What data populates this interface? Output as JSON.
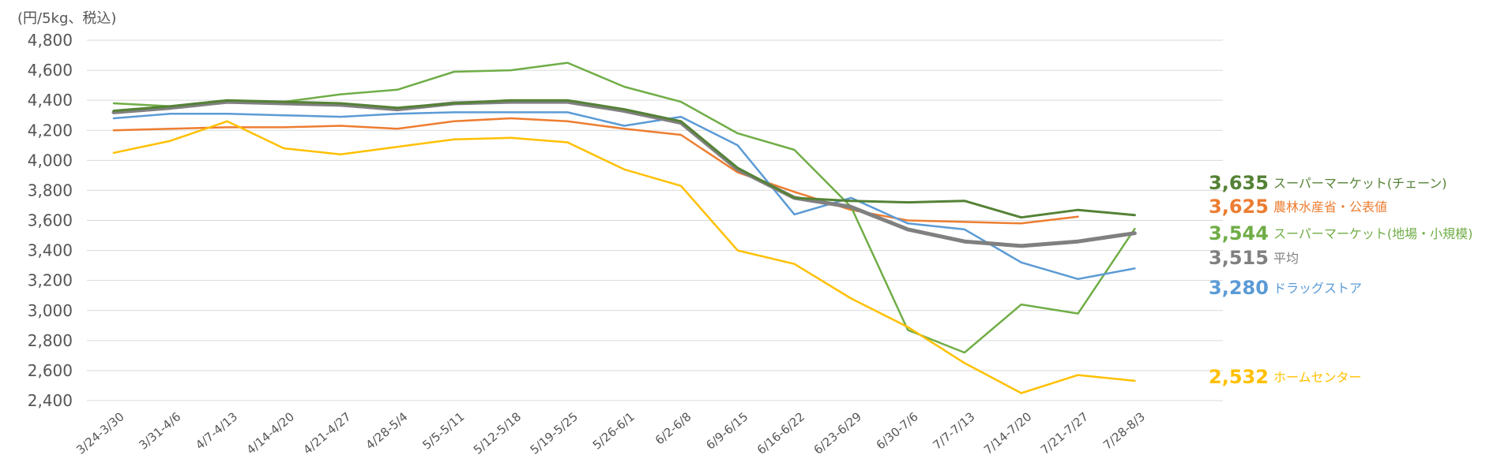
{
  "chart_data": {
    "type": "line",
    "unit_label": "(円/5kg、税込)",
    "ylim": [
      2400,
      4800
    ],
    "yticks": [
      "4,800",
      "4,600",
      "4,400",
      "4,200",
      "4,000",
      "3,800",
      "3,600",
      "3,400",
      "3,200",
      "3,000",
      "2,800",
      "2,600",
      "2,400"
    ],
    "ytick_values": [
      4800,
      4600,
      4400,
      4200,
      4000,
      3800,
      3600,
      3400,
      3200,
      3000,
      2800,
      2600,
      2400
    ],
    "grid": true,
    "categories": [
      "3/24-3/30",
      "3/31-4/6",
      "4/7-4/13",
      "4/14-4/20",
      "4/21-4/27",
      "4/28-5/4",
      "5/5-5/11",
      "5/12-5/18",
      "5/19-5/25",
      "5/26-6/1",
      "6/2-6/8",
      "6/9-6/15",
      "6/16-6/22",
      "6/23-6/29",
      "6/30-7/6",
      "7/7-7/13",
      "7/14-7/20",
      "7/21-7/27",
      "7/28-8/3"
    ],
    "series": [
      {
        "name": "スーパーマーケット(チェーン)",
        "end_label": "3,635",
        "color": "#548235",
        "width": 3,
        "values": [
          4330,
          4360,
          4400,
          4390,
          4380,
          4350,
          4380,
          4400,
          4400,
          4340,
          4260,
          3950,
          3750,
          3730,
          3720,
          3730,
          3620,
          3670,
          3635
        ]
      },
      {
        "name": "農林水産省・公表値",
        "end_label": "3,625",
        "color": "#ed7d31",
        "width": 2.5,
        "values": [
          4200,
          4210,
          4220,
          4220,
          4230,
          4210,
          4260,
          4280,
          4260,
          4210,
          4170,
          3920,
          3790,
          3670,
          3600,
          3590,
          3580,
          3625,
          null
        ]
      },
      {
        "name": "スーパーマーケット(地場・小規模)",
        "end_label": "3,544",
        "color": "#70ad47",
        "width": 2.5,
        "values": [
          4380,
          4360,
          4390,
          4390,
          4440,
          4470,
          4590,
          4600,
          4650,
          4490,
          4390,
          4180,
          4070,
          3690,
          2870,
          2720,
          3040,
          2980,
          3544
        ]
      },
      {
        "name": "平均",
        "end_label": "3,515",
        "color": "#808080",
        "width": 5,
        "values": [
          4320,
          4350,
          4390,
          4380,
          4370,
          4340,
          4380,
          4390,
          4390,
          4330,
          4250,
          3940,
          3750,
          3690,
          3540,
          3460,
          3430,
          3460,
          3515
        ]
      },
      {
        "name": "ドラッグストア",
        "end_label": "3,280",
        "color": "#5b9bd5",
        "width": 2.5,
        "values": [
          4280,
          4310,
          4310,
          4300,
          4290,
          4310,
          4320,
          4320,
          4320,
          4230,
          4290,
          4100,
          3640,
          3750,
          3580,
          3540,
          3320,
          3210,
          3280
        ]
      },
      {
        "name": "ホームセンター",
        "end_label": "2,532",
        "color": "#ffc000",
        "width": 2.5,
        "values": [
          4050,
          4130,
          4260,
          4080,
          4040,
          4090,
          4140,
          4150,
          4120,
          3940,
          3830,
          3400,
          3310,
          3080,
          2890,
          2650,
          2450,
          2570,
          2532
        ]
      }
    ]
  }
}
